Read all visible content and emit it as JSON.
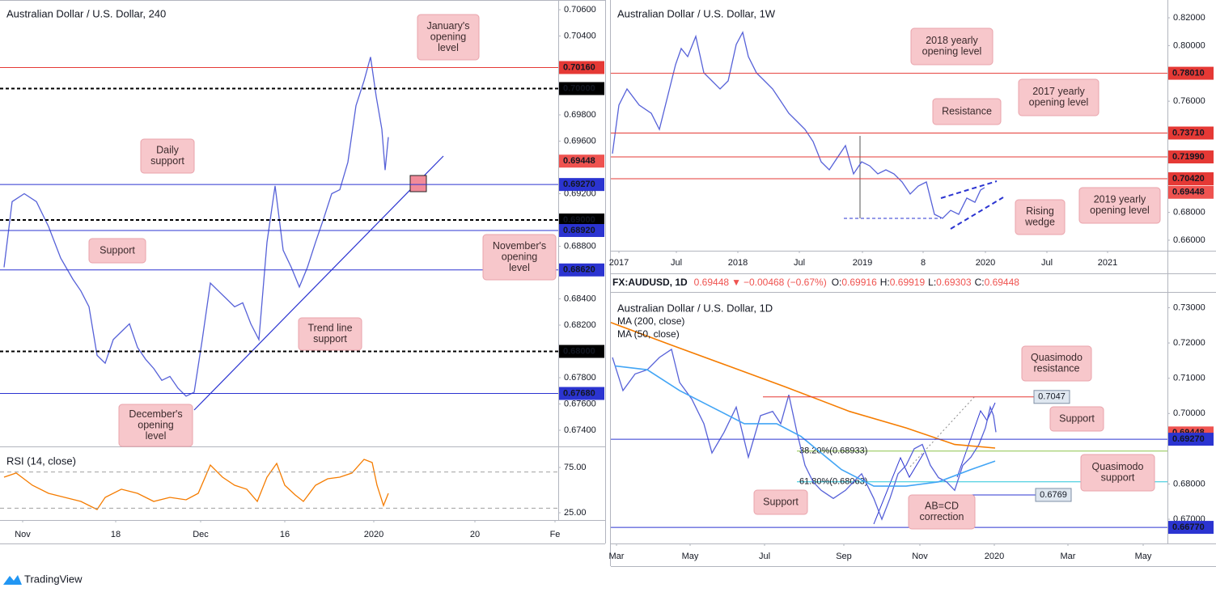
{
  "chart_data": [
    {
      "type": "line",
      "title": "Australian Dollar / U.S. Dollar, 240",
      "xlim": [
        0,
        69
      ],
      "ylim": [
        0.67277,
        0.70674
      ],
      "yticks": [
        {
          "value": 0.706,
          "label": "0.70600"
        },
        {
          "value": 0.704,
          "label": "0.70400"
        },
        {
          "value": 0.698,
          "label": "0.69800"
        },
        {
          "value": 0.696,
          "label": "0.69600"
        },
        {
          "value": 0.692,
          "label": "0.69200"
        },
        {
          "value": 0.688,
          "label": "0.68800"
        },
        {
          "value": 0.684,
          "label": "0.68400"
        },
        {
          "value": 0.682,
          "label": "0.68200"
        },
        {
          "value": 0.678,
          "label": "0.67800"
        },
        {
          "value": 0.676,
          "label": "0.67600"
        },
        {
          "value": 0.674,
          "label": "0.67400"
        }
      ],
      "series": [
        {
          "color": "#5661d8",
          "x": [
            0.5,
            1.5,
            3,
            4.5,
            6,
            7.5,
            9,
            10,
            11,
            12,
            13,
            14,
            15,
            16,
            17,
            18,
            19,
            20,
            21,
            22,
            23,
            24,
            25,
            26,
            27,
            28,
            29,
            30,
            31,
            32,
            33,
            34,
            35,
            36,
            37,
            38,
            39,
            40,
            41,
            42,
            43,
            44,
            45,
            45.8,
            46.5,
            47.2,
            47.6,
            48
          ],
          "values": [
            0.6864,
            0.6914,
            0.692,
            0.6914,
            0.6895,
            0.6871,
            0.6855,
            0.6846,
            0.6834,
            0.6797,
            0.6791,
            0.6809,
            0.6815,
            0.6821,
            0.6803,
            0.6794,
            0.6787,
            0.6778,
            0.6781,
            0.6772,
            0.6766,
            0.6769,
            0.6809,
            0.6852,
            0.6846,
            0.684,
            0.6834,
            0.6837,
            0.6821,
            0.6809,
            0.6883,
            0.6926,
            0.6877,
            0.6864,
            0.6849,
            0.6864,
            0.6883,
            0.6901,
            0.692,
            0.6923,
            0.6944,
            0.6987,
            0.7006,
            0.7024,
            0.6994,
            0.6969,
            0.6938,
            0.6963
          ]
        }
      ],
      "levels": [
        {
          "value": 0.7016,
          "label": "0.70160",
          "color": "#e53935",
          "dash": false,
          "line": true,
          "box": "axis"
        },
        {
          "value": 0.7,
          "label": "0.70000",
          "color": "#000000",
          "dash": true,
          "line": true,
          "box": "axis"
        },
        {
          "value": 0.69448,
          "color": "#ef5350",
          "dash": false,
          "line": false,
          "box": "axis"
        },
        {
          "value": 0.6927,
          "label": "0.69270",
          "color": "#2b34d1",
          "dash": false,
          "line": true,
          "box": "axis"
        },
        {
          "value": 0.69,
          "label": "0.69000",
          "color": "#000000",
          "dash": true,
          "line": true,
          "box": "axis"
        },
        {
          "value": 0.6892,
          "label": "0.68920",
          "color": "#2b34d1",
          "dash": false,
          "line": true,
          "box": "axis"
        },
        {
          "value": 0.6862,
          "label": "0.68620",
          "color": "#2b34d1",
          "dash": false,
          "line": true,
          "box": "axis"
        },
        {
          "value": 0.68,
          "label": "0.68000",
          "color": "#000000",
          "dash": true,
          "line": true,
          "box": "axis"
        },
        {
          "value": 0.6768,
          "label": "0.67680",
          "color": "#2b34d1",
          "dash": false,
          "line": true,
          "box": "axis"
        }
      ],
      "annotations": [
        {
          "lines": [
            "January's",
            "opening",
            "level"
          ]
        },
        {
          "lines": [
            "Daily",
            "support"
          ]
        },
        {
          "lines": [
            "Support"
          ]
        },
        {
          "lines": [
            "November's",
            "opening",
            "level"
          ]
        },
        {
          "lines": [
            "Trend line",
            "support"
          ]
        },
        {
          "lines": [
            "December's",
            "opening",
            "level"
          ]
        }
      ]
    },
    {
      "type": "line",
      "title": "RSI (14, close)",
      "xlim": [
        0,
        69
      ],
      "ylim": [
        17,
        97.3
      ],
      "xticks": [
        {
          "value": 2.8,
          "label": "Nov"
        },
        {
          "value": 14.3,
          "label": "18"
        },
        {
          "value": 24.8,
          "label": "Dec"
        },
        {
          "value": 35.2,
          "label": "16"
        },
        {
          "value": 46.2,
          "label": "2020"
        },
        {
          "value": 58.7,
          "label": "20"
        },
        {
          "value": 68.6,
          "label": "Fe"
        }
      ],
      "yticks": [
        {
          "value": 75,
          "label": "75.00"
        },
        {
          "value": 25,
          "label": "25.00"
        }
      ],
      "series": [
        {
          "color": "#f57c00",
          "x": [
            0.5,
            2,
            4,
            6,
            8,
            10,
            12,
            13,
            15,
            17,
            19,
            21,
            23,
            24.5,
            26,
            27.5,
            29,
            30.5,
            31.8,
            33,
            34.2,
            35.2,
            36.5,
            37.5,
            39,
            40.5,
            42,
            43.5,
            45,
            46,
            46.6,
            47.4,
            48
          ],
          "values": [
            64.3,
            68.8,
            55.4,
            46.4,
            42,
            37.5,
            28.6,
            42,
            51,
            46.4,
            37.5,
            42,
            39.3,
            46.4,
            77.7,
            64.3,
            55.4,
            51,
            37.5,
            64.3,
            79.5,
            55.4,
            44.6,
            37.5,
            55.4,
            62.5,
            64.3,
            68.8,
            83.9,
            80.4,
            55.4,
            33,
            46.4
          ]
        }
      ],
      "levels": [
        {
          "value": 70,
          "color": "#a0a0a0",
          "dash": true,
          "line": true,
          "box": "none"
        },
        {
          "value": 30,
          "color": "#a0a0a0",
          "dash": true,
          "line": true,
          "box": "none"
        }
      ]
    },
    {
      "type": "line",
      "title": "Australian Dollar / U.S. Dollar, 1W",
      "xlim": [
        0,
        68.8
      ],
      "ylim": [
        0.65244,
        0.8328
      ],
      "xticks": [
        {
          "value": 1,
          "label": "2017"
        },
        {
          "value": 8.1,
          "label": "Jul"
        },
        {
          "value": 15.7,
          "label": "2018"
        },
        {
          "value": 23.3,
          "label": "Jul"
        },
        {
          "value": 31.1,
          "label": "2019"
        },
        {
          "value": 38.6,
          "label": "8"
        },
        {
          "value": 46.3,
          "label": "2020"
        },
        {
          "value": 53.9,
          "label": "Jul"
        },
        {
          "value": 61.4,
          "label": "2021"
        }
      ],
      "yticks": [
        {
          "value": 0.82,
          "label": "0.82000"
        },
        {
          "value": 0.8,
          "label": "0.80000"
        },
        {
          "value": 0.76,
          "label": "0.76000"
        },
        {
          "value": 0.68,
          "label": "0.68000"
        },
        {
          "value": 0.66,
          "label": "0.66000"
        }
      ],
      "series": [
        {
          "color": "#5661d8",
          "x": [
            0.2,
            1,
            2,
            3.5,
            5,
            6,
            7,
            8,
            8.7,
            9.5,
            10.5,
            11.5,
            12.5,
            13.5,
            14.5,
            15.5,
            16.3,
            17,
            18,
            19,
            20,
            21,
            22,
            23,
            24,
            25,
            26,
            27,
            28,
            29,
            30,
            31,
            32,
            33,
            34,
            35,
            36,
            37,
            38,
            39,
            40,
            41,
            42,
            43,
            44,
            45,
            45.7,
            46.2
          ],
          "values": [
            0.7223,
            0.7572,
            0.7688,
            0.7572,
            0.7513,
            0.7397,
            0.763,
            0.7863,
            0.7979,
            0.7921,
            0.8066,
            0.7804,
            0.7746,
            0.7688,
            0.7746,
            0.8008,
            0.8095,
            0.7921,
            0.7804,
            0.7746,
            0.7688,
            0.7601,
            0.7513,
            0.7455,
            0.7397,
            0.731,
            0.7164,
            0.7106,
            0.7194,
            0.7281,
            0.7077,
            0.7164,
            0.7135,
            0.7077,
            0.7106,
            0.7077,
            0.7019,
            0.6932,
            0.699,
            0.7019,
            0.6786,
            0.6757,
            0.6815,
            0.6786,
            0.6903,
            0.6873,
            0.6961,
            0.6978
          ]
        }
      ],
      "levels": [
        {
          "value": 0.7801,
          "label": "0.78010",
          "color": "#e53935",
          "dash": false,
          "line": true,
          "box": "axis"
        },
        {
          "value": 0.7371,
          "label": "0.73710",
          "color": "#e53935",
          "dash": false,
          "line": true,
          "box": "axis"
        },
        {
          "value": 0.7199,
          "label": "0.71990",
          "color": "#e53935",
          "dash": false,
          "line": true,
          "box": "axis"
        },
        {
          "value": 0.7042,
          "label": "0.70420",
          "color": "#e53935",
          "dash": false,
          "line": true,
          "box": "axis"
        },
        {
          "value": 0.69448,
          "color": "#ef5350",
          "dash": false,
          "line": false,
          "box": "axis"
        }
      ],
      "annotations": [
        {
          "lines": [
            "2018 yearly",
            "opening level"
          ]
        },
        {
          "lines": [
            "2017 yearly",
            "opening level"
          ]
        },
        {
          "lines": [
            "Resistance"
          ]
        },
        {
          "lines": [
            "Rising",
            "wedge"
          ]
        },
        {
          "lines": [
            "2019 yearly",
            "opening level"
          ]
        }
      ]
    },
    {
      "type": "line",
      "title": "Australian Dollar / U.S. Dollar, 1D",
      "header": {
        "symbol": "FX:AUDUSD, 1D",
        "last": 0.69448,
        "arrow": "▼",
        "change": "−0.00468 (−0.67%)",
        "ohlc": [
          {
            "label": "O:",
            "value": 0.69916
          },
          {
            "label": "H:",
            "value": 0.69919
          },
          {
            "label": "L:",
            "value": 0.69303
          },
          {
            "label": "C:",
            "value": 0.69448
          }
        ]
      },
      "xlim": [
        0,
        68.8
      ],
      "ylim": [
        0.66313,
        0.73424
      ],
      "xticks": [
        {
          "value": 0.7,
          "label": "Mar"
        },
        {
          "value": 9.8,
          "label": "May"
        },
        {
          "value": 19,
          "label": "Jul"
        },
        {
          "value": 28.8,
          "label": "Sep"
        },
        {
          "value": 38.2,
          "label": "Nov"
        },
        {
          "value": 47.4,
          "label": "2020"
        },
        {
          "value": 56.5,
          "label": "Mar"
        },
        {
          "value": 65.8,
          "label": "May"
        }
      ],
      "yticks": [
        {
          "value": 0.73,
          "label": "0.73000"
        },
        {
          "value": 0.72,
          "label": "0.72000"
        },
        {
          "value": 0.71,
          "label": "0.71000"
        },
        {
          "value": 0.7,
          "label": "0.70000"
        },
        {
          "value": 0.68,
          "label": "0.68000"
        },
        {
          "value": 0.67,
          "label": "0.67000"
        }
      ],
      "series": [
        {
          "color": "#5661d8",
          "x": [
            0.2,
            1.5,
            3,
            4.5,
            6,
            7.5,
            8.5,
            10,
            11.5,
            12.5,
            14,
            15.5,
            17,
            18.5,
            20,
            21,
            22,
            23,
            24,
            25,
            26,
            27.5,
            29,
            30,
            31,
            32.5,
            33.5,
            34.5,
            35.5,
            36.5,
            37.5,
            38.5,
            39.5,
            40.5,
            41.5,
            42.5,
            43.5,
            44.5,
            45.5,
            46.3,
            46.9,
            47.3,
            47.6
          ],
          "values": [
            0.7159,
            0.7065,
            0.7112,
            0.7124,
            0.7159,
            0.7182,
            0.7088,
            0.7041,
            0.6971,
            0.6888,
            0.6947,
            0.7018,
            0.6876,
            0.6994,
            0.7006,
            0.6971,
            0.7053,
            0.6947,
            0.6853,
            0.6806,
            0.6782,
            0.6759,
            0.6782,
            0.6806,
            0.6829,
            0.6759,
            0.67,
            0.6759,
            0.6829,
            0.6853,
            0.69,
            0.6912,
            0.6853,
            0.6818,
            0.6806,
            0.6782,
            0.6853,
            0.6876,
            0.6912,
            0.6959,
            0.7018,
            0.6994,
            0.6947
          ]
        },
        {
          "name": "MA (200, close)",
          "color": "#f57c00",
          "x": [
            0,
            7.5,
            14.5,
            21.5,
            29.5,
            36.5,
            42.5,
            47.5
          ],
          "values": [
            0.7258,
            0.7194,
            0.7135,
            0.7076,
            0.7006,
            0.6959,
            0.6912,
            0.6902
          ]
        },
        {
          "name": "MA (50, close)",
          "color": "#42a5f5",
          "x": [
            0.5,
            4.5,
            8.5,
            12.5,
            16.5,
            20.5,
            23.5,
            28.5,
            32.5,
            36.5,
            40.5,
            44.5,
            47.5
          ],
          "values": [
            0.7135,
            0.7124,
            0.7065,
            0.7018,
            0.6971,
            0.6971,
            0.6935,
            0.6841,
            0.6794,
            0.6794,
            0.6806,
            0.6841,
            0.6865
          ]
        }
      ],
      "levels": [
        {
          "value": 0.7047,
          "color": "#e53935",
          "dash": false,
          "line": true,
          "box": "note"
        },
        {
          "value": 0.69448,
          "color": "#ef5350",
          "dash": false,
          "line": false,
          "box": "axis"
        },
        {
          "value": 0.6927,
          "label": "0.69270",
          "color": "#2b34d1",
          "dash": false,
          "line": true,
          "box": "axis"
        },
        {
          "value": 0.6677,
          "label": "0.66770",
          "color": "#2b34d1",
          "dash": false,
          "line": true,
          "box": "axis"
        },
        {
          "value": 0.6769,
          "color": "#2b34d1",
          "dash": false,
          "line": true,
          "box": "note"
        }
      ],
      "fibs": [
        {
          "value": 0.68933,
          "label": "38.20%(0.68933)",
          "color": "#8bc34a"
        },
        {
          "value": 0.68063,
          "label": "61.80%(0.68063)",
          "color": "#26c6da"
        }
      ],
      "annotations": [
        {
          "lines": [
            "Quasimodo",
            "resistance"
          ]
        },
        {
          "lines": [
            "Support"
          ]
        },
        {
          "lines": [
            "Quasimodo",
            "support"
          ]
        },
        {
          "lines": [
            "Support"
          ]
        },
        {
          "lines": [
            "AB=CD",
            "correction"
          ]
        }
      ]
    }
  ],
  "footer": {
    "brand": "TradingView"
  }
}
